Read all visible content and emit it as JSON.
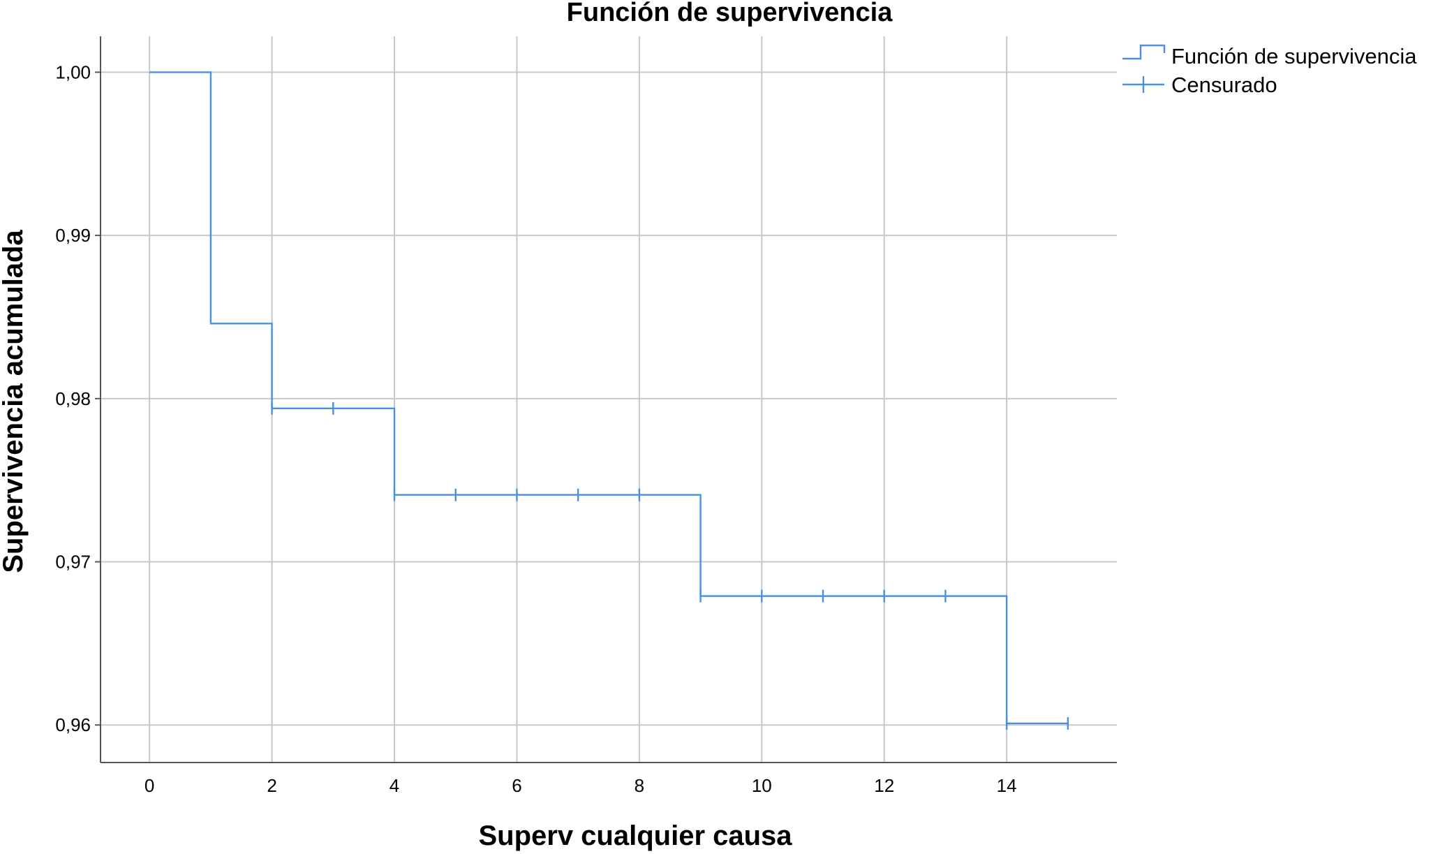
{
  "chart_data": {
    "type": "line",
    "subtype": "step",
    "title": "Función de supervivencia",
    "xlabel": "Superv cualquier causa",
    "ylabel": "Supervivencia acumulada",
    "xlim": [
      -0.8,
      15.8
    ],
    "ylim": [
      0.9577,
      1.0022
    ],
    "x_ticks": [
      0,
      2,
      4,
      6,
      8,
      10,
      12,
      14
    ],
    "x_tick_labels": [
      "0",
      "2",
      "4",
      "6",
      "8",
      "10",
      "12",
      "14"
    ],
    "y_ticks": [
      0.96,
      0.97,
      0.98,
      0.99,
      1.0
    ],
    "y_tick_labels": [
      "0,96",
      "0,97",
      "0,98",
      "0,99",
      "1,00"
    ],
    "grid": true,
    "legend_position": "top-right",
    "legend": [
      "Función de supervivencia",
      "Censurado"
    ],
    "line_color": "#4a90e2",
    "series": [
      {
        "name": "Función de supervivencia",
        "steps": [
          {
            "x": 0,
            "y": 1.0
          },
          {
            "x": 1,
            "y": 0.9846
          },
          {
            "x": 2,
            "y": 0.9794
          },
          {
            "x": 4,
            "y": 0.9741
          },
          {
            "x": 9,
            "y": 0.9679
          },
          {
            "x": 14,
            "y": 0.9601
          }
        ],
        "end_x": 15
      },
      {
        "name": "Censurado",
        "points": [
          {
            "x": 2,
            "y": 0.9794
          },
          {
            "x": 3,
            "y": 0.9794
          },
          {
            "x": 4,
            "y": 0.9741
          },
          {
            "x": 5,
            "y": 0.9741
          },
          {
            "x": 6,
            "y": 0.9741
          },
          {
            "x": 7,
            "y": 0.9741
          },
          {
            "x": 8,
            "y": 0.9741
          },
          {
            "x": 9,
            "y": 0.9679
          },
          {
            "x": 10,
            "y": 0.9679
          },
          {
            "x": 11,
            "y": 0.9679
          },
          {
            "x": 12,
            "y": 0.9679
          },
          {
            "x": 13,
            "y": 0.9679
          },
          {
            "x": 14,
            "y": 0.9601
          },
          {
            "x": 15,
            "y": 0.9601
          }
        ]
      }
    ]
  }
}
